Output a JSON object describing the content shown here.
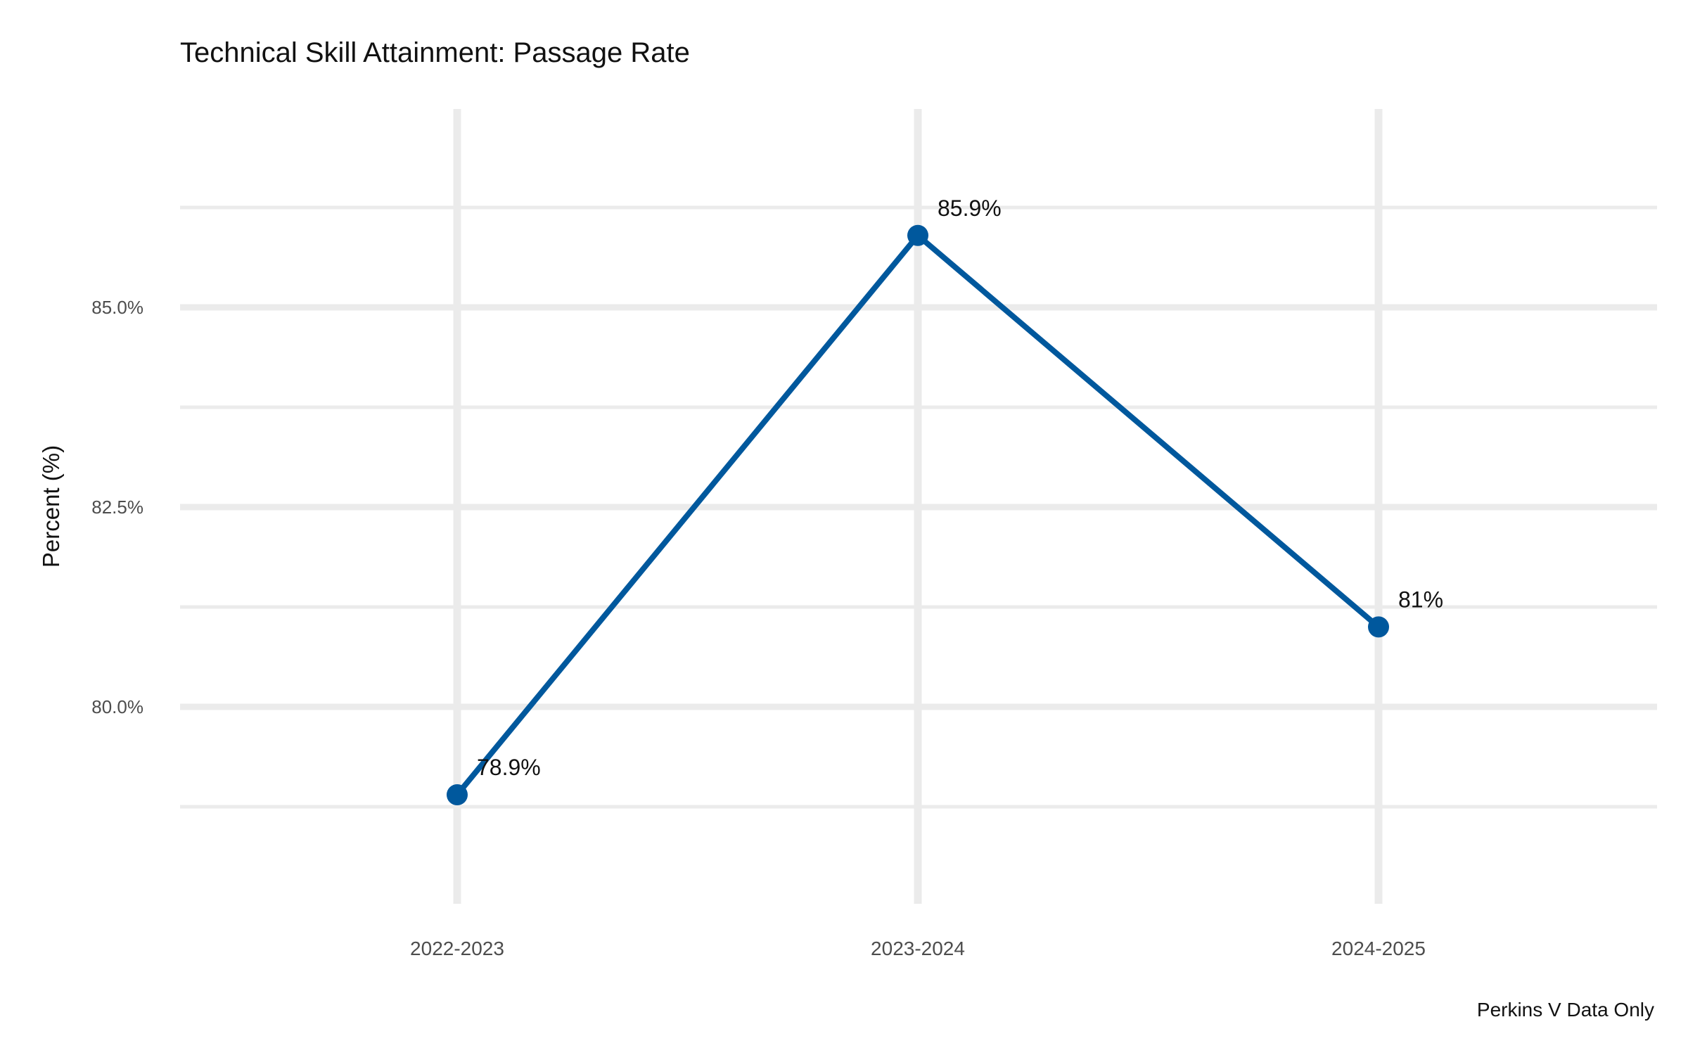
{
  "chart_data": {
    "type": "line",
    "title": "Technical Skill Attainment: Passage Rate",
    "xlabel": "",
    "ylabel": "Percent (%)",
    "caption": "Perkins V Data Only",
    "categories": [
      "2022-2023",
      "2023-2024",
      "2024-2025"
    ],
    "series": [
      {
        "values": [
          78.9,
          85.9,
          81.0
        ],
        "labels": [
          "78.9%",
          "85.9%",
          "81%"
        ]
      }
    ],
    "ylim": [
      77.4,
      87.3
    ],
    "major_ticks": [
      80.0,
      82.5,
      85.0
    ],
    "major_tick_labels": [
      "80.0%",
      "82.5%",
      "85.0%"
    ],
    "minor_ticks": [
      78.75,
      81.25,
      83.75,
      86.25
    ],
    "grid": true,
    "legend": "none",
    "colors": {
      "line": "#00589d",
      "grid": "#ebebeb"
    }
  }
}
